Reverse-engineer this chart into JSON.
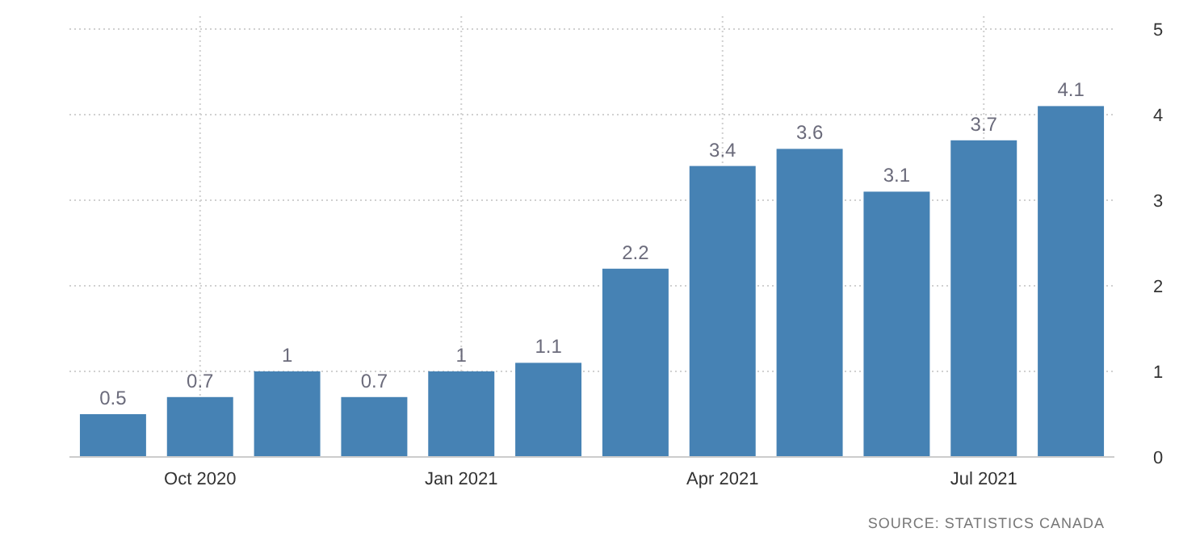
{
  "chart_data": {
    "type": "bar",
    "categories": [
      null,
      "Oct 2020",
      null,
      null,
      "Jan 2021",
      null,
      null,
      "Apr 2021",
      null,
      null,
      "Jul 2021",
      null
    ],
    "values": [
      0.5,
      0.7,
      1,
      0.7,
      1,
      1.1,
      2.2,
      3.4,
      3.6,
      3.1,
      3.7,
      4.1
    ],
    "color": "#4682b4",
    "ylim": [
      0,
      5
    ],
    "yticks": [
      0,
      1,
      2,
      3,
      4,
      5
    ],
    "grid": true,
    "data_labels": true,
    "annotations": [
      "SOURCE: STATISTICS CANADA"
    ]
  }
}
